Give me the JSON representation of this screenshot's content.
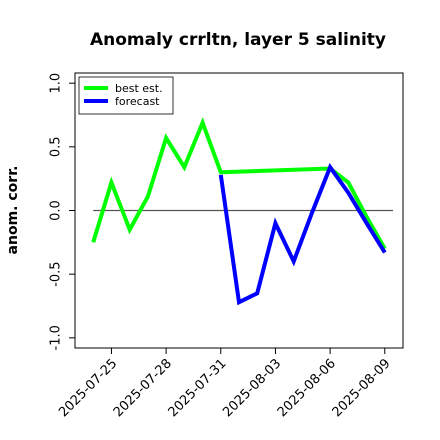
{
  "chart_data": {
    "type": "line",
    "title": "Anomaly crrltn, layer 5 salinity",
    "xlabel": "",
    "ylabel": "anom. corr.",
    "ylim": [
      -1.08,
      1.08
    ],
    "xlim": [
      "2025-07-23",
      "2025-08-10"
    ],
    "y_ticks": [
      -1.0,
      -0.5,
      0.0,
      0.5,
      1.0
    ],
    "y_tick_labels": [
      "-1.0",
      "-0.5",
      "0.0",
      "0.5",
      "1.0"
    ],
    "x_ticks": [
      "2025-07-25",
      "2025-07-28",
      "2025-07-31",
      "2025-08-03",
      "2025-08-06",
      "2025-08-09"
    ],
    "x_tick_labels": [
      "2025-07-25",
      "2025-07-28",
      "2025-07-31",
      "2025-08-03",
      "2025-08-06",
      "2025-08-09"
    ],
    "highlight_x_tick": "2025-07-31",
    "highlight_color": "#228B22",
    "reference_line_y": 0.0,
    "grid": false,
    "legend_position": "top-left",
    "series": [
      {
        "name": "best est.",
        "color": "#00ff00",
        "x": [
          "2025-07-24",
          "2025-07-25",
          "2025-07-26",
          "2025-07-27",
          "2025-07-28",
          "2025-07-29",
          "2025-07-30",
          "2025-07-31",
          "2025-08-06",
          "2025-08-07",
          "2025-08-08",
          "2025-08-09"
        ],
        "y": [
          -0.25,
          0.22,
          -0.15,
          0.11,
          0.57,
          0.34,
          0.69,
          0.3,
          0.33,
          0.22,
          -0.05,
          -0.3
        ]
      },
      {
        "name": "forecast",
        "color": "#0000ff",
        "x": [
          "2025-07-31",
          "2025-08-01",
          "2025-08-02",
          "2025-08-03",
          "2025-08-04",
          "2025-08-05",
          "2025-08-06",
          "2025-08-07",
          "2025-08-08",
          "2025-08-09"
        ],
        "y": [
          0.28,
          -0.72,
          -0.65,
          -0.1,
          -0.4,
          -0.02,
          0.34,
          0.14,
          -0.1,
          -0.33
        ]
      }
    ]
  }
}
